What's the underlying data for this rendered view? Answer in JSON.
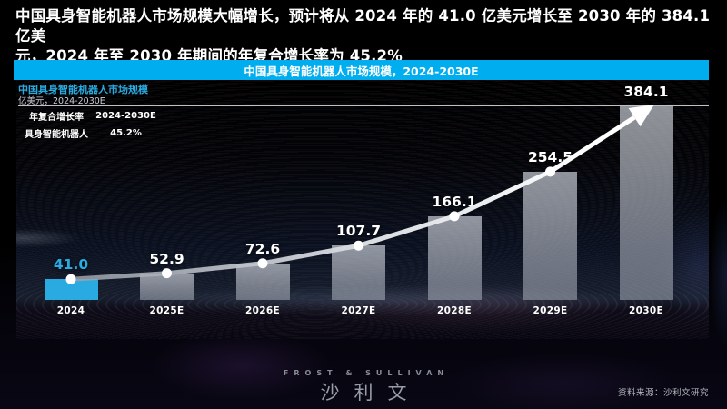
{
  "headline": {
    "line1": "中国具身智能机器人市场规模大幅增长，预计将从 2024 年的 41.0 亿美元增长至 2030 年的 384.1 亿美",
    "line2": "元，2024 年至 2030 年期间的年复合增长率为 45.2%"
  },
  "title_bar": {
    "label": "中国具身智能机器人市场规模，2024-2030E"
  },
  "chart_header": {
    "title": "中国具身智能机器人市场规模",
    "units_label": "亿美元，2024-2030E"
  },
  "cagr_table": {
    "header": [
      "年复合增长率",
      "2024-2030E"
    ],
    "rows": [
      [
        "具身智能机器人",
        "45.2%"
      ]
    ]
  },
  "chart_data": {
    "type": "bar",
    "overlay": "line-with-arrow",
    "title": "中国具身智能机器人市场规模，2024-2030E",
    "unit": "亿美元",
    "categories": [
      "2024",
      "2025E",
      "2026E",
      "2027E",
      "2028E",
      "2029E",
      "2030E"
    ],
    "values": [
      41.0,
      52.9,
      72.6,
      107.7,
      166.1,
      254.5,
      384.1
    ],
    "series": [
      {
        "name": "具身智能机器人",
        "values": [
          41.0,
          52.9,
          72.6,
          107.7,
          166.1,
          254.5,
          384.1
        ]
      }
    ],
    "cagr_2024_2030": "45.2%",
    "ylim": [
      0,
      384.1
    ],
    "grid": "off",
    "legend_position": "none",
    "highlight_index": 0
  },
  "footer": {
    "brand_en": "FROST & SULLIVAN",
    "brand_cn": "沙利文",
    "source": "资料来源：沙利文研究"
  },
  "colors": {
    "accent": "#29ABE2",
    "title_bar_bg": "#00AEF0",
    "bar_gray_top": "rgba(215,220,229,0.66)",
    "bar_gray_bottom": "rgba(180,186,198,0.50)",
    "line_color": "#ffffff",
    "text_light": "#c9ced6"
  }
}
